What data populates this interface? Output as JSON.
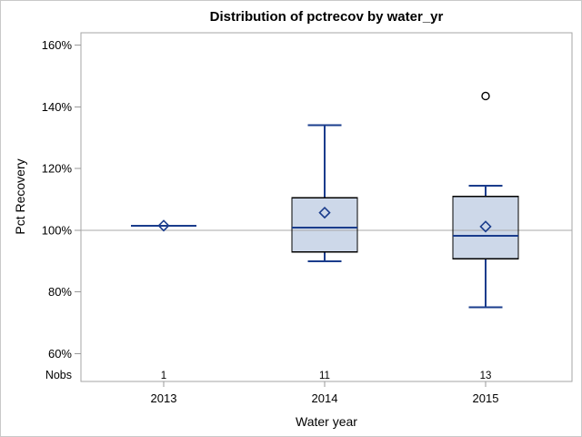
{
  "chart_data": {
    "type": "boxplot",
    "title": "Distribution of pctrecov by water_yr",
    "xlabel": "Water year",
    "ylabel": "Pct Recovery",
    "categories": [
      "2013",
      "2014",
      "2015"
    ],
    "nobs_label": "Nobs",
    "nobs": [
      "1",
      "11",
      "13"
    ],
    "y_ticks": [
      60,
      80,
      100,
      120,
      140,
      160
    ],
    "y_tick_suffix": "%",
    "ylim": [
      51,
      164
    ],
    "reference_line": 100,
    "grid": false,
    "legend": "none",
    "series": [
      {
        "category": "2013",
        "n": 1,
        "min": 101.5,
        "q1": 101.5,
        "median": 101.5,
        "q3": 101.5,
        "max": 101.5,
        "mean": 101.5,
        "outliers": []
      },
      {
        "category": "2014",
        "n": 11,
        "min": 90,
        "q1": 93,
        "median": 100.8,
        "q3": 110.5,
        "max": 134,
        "mean": 105.7,
        "outliers": []
      },
      {
        "category": "2015",
        "n": 13,
        "min": 75,
        "q1": 90.8,
        "median": 98.2,
        "q3": 111,
        "max": 114.5,
        "mean": 101.2,
        "outliers": [
          143.5
        ]
      }
    ],
    "colors": {
      "box_fill": "#cdd8e9",
      "box_border": "#000000",
      "whisker": "#1a3c8c",
      "median": "#1a3c8c",
      "mean_marker": "#1a3c8c",
      "outlier": "#000000",
      "reference_line": "#a9a9a9",
      "frame": "#a6a6a6",
      "tick": "#999999",
      "text": "#000000"
    }
  }
}
